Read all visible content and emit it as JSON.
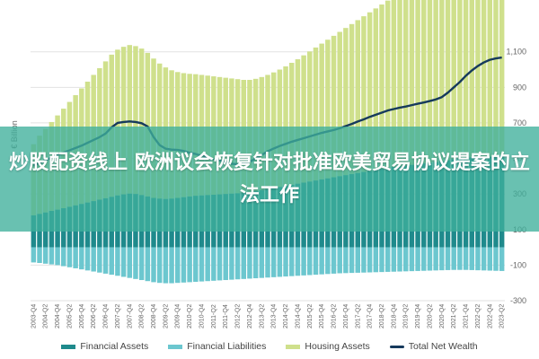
{
  "overlay": {
    "headline": "炒股配资线上 欧洲议会恢复针对批准欧美贸易协议提案的立法工作"
  },
  "chart_data": {
    "type": "bar+line",
    "ylabel": "€ Billion",
    "ylim": [
      -300,
      1250
    ],
    "yticks": [
      -300,
      -100,
      100,
      300,
      500,
      700,
      900,
      1100
    ],
    "ytick_labels": [
      "-300",
      "-100",
      "100",
      "300",
      "500",
      "700",
      "900",
      "1,100"
    ],
    "grid": true,
    "legend_position": "bottom",
    "x": [
      "2003-Q4",
      "2004-Q1",
      "2004-Q2",
      "2004-Q3",
      "2004-Q4",
      "2005-Q1",
      "2005-Q2",
      "2005-Q3",
      "2005-Q4",
      "2006-Q1",
      "2006-Q2",
      "2006-Q3",
      "2006-Q4",
      "2007-Q1",
      "2007-Q2",
      "2007-Q3",
      "2007-Q4",
      "2008-Q1",
      "2008-Q2",
      "2008-Q3",
      "2008-Q4",
      "2009-Q1",
      "2009-Q2",
      "2009-Q3",
      "2009-Q4",
      "2010-Q1",
      "2010-Q2",
      "2010-Q3",
      "2010-Q4",
      "2011-Q1",
      "2011-Q2",
      "2011-Q3",
      "2011-Q4",
      "2012-Q1",
      "2012-Q2",
      "2012-Q3",
      "2012-Q4",
      "2013-Q1",
      "2013-Q2",
      "2013-Q3",
      "2013-Q4",
      "2014-Q1",
      "2014-Q2",
      "2014-Q3",
      "2014-Q4",
      "2015-Q1",
      "2015-Q2",
      "2015-Q3",
      "2015-Q4",
      "2016-Q1",
      "2016-Q2",
      "2016-Q3",
      "2016-Q4",
      "2017-Q1",
      "2017-Q2",
      "2017-Q3",
      "2017-Q4",
      "2018-Q1",
      "2018-Q2",
      "2018-Q3",
      "2018-Q4",
      "2019-Q1",
      "2019-Q2",
      "2019-Q3",
      "2019-Q4",
      "2020-Q1",
      "2020-Q2",
      "2020-Q3",
      "2020-Q4",
      "2021-Q1",
      "2021-Q2",
      "2021-Q3",
      "2021-Q4",
      "2022-Q1",
      "2022-Q2",
      "2022-Q3",
      "2022-Q4",
      "2023-Q1",
      "2023-Q2"
    ],
    "x_tick_labels": [
      "2003-Q4",
      "2004-Q2",
      "2004-Q4",
      "2005-Q2",
      "2005-Q4",
      "2006-Q2",
      "2006-Q4",
      "2007-Q2",
      "2007-Q4",
      "2008-Q2",
      "2008-Q4",
      "2009-Q2",
      "2009-Q4",
      "2010-Q2",
      "2010-Q4",
      "2011-Q2",
      "2011-Q4",
      "2012-Q2",
      "2012-Q4",
      "2013-Q2",
      "2013-Q4",
      "2014-Q2",
      "2014-Q4",
      "2015-Q2",
      "2015-Q4",
      "2016-Q2",
      "2016-Q4",
      "2017-Q2",
      "2017-Q4",
      "2018-Q2",
      "2018-Q4",
      "2019-Q2",
      "2019-Q4",
      "2020-Q2",
      "2020-Q4",
      "2021-Q2",
      "2021-Q4",
      "2022-Q2",
      "2022-Q4",
      "2023-Q2"
    ],
    "series": [
      {
        "name": "Financial Assets",
        "kind": "bar",
        "color": "#1f8a8c",
        "values": [
          180,
          188,
          196,
          205,
          212,
          220,
          228,
          236,
          244,
          252,
          260,
          268,
          276,
          284,
          292,
          298,
          302,
          300,
          294,
          286,
          278,
          274,
          272,
          274,
          278,
          282,
          286,
          290,
          292,
          294,
          296,
          298,
          300,
          302,
          304,
          306,
          310,
          316,
          322,
          328,
          334,
          340,
          346,
          352,
          358,
          364,
          370,
          376,
          382,
          388,
          394,
          400,
          406,
          412,
          418,
          424,
          430,
          436,
          442,
          448,
          452,
          456,
          460,
          464,
          468,
          472,
          476,
          480,
          484,
          490,
          496,
          500,
          504,
          506,
          508,
          508,
          510,
          514,
          518
        ]
      },
      {
        "name": "Financial Liabilities",
        "kind": "bar",
        "color": "#6cc7cf",
        "values": [
          -85,
          -88,
          -92,
          -96,
          -100,
          -106,
          -112,
          -118,
          -124,
          -130,
          -136,
          -142,
          -148,
          -154,
          -160,
          -166,
          -172,
          -178,
          -184,
          -190,
          -196,
          -200,
          -202,
          -202,
          -200,
          -198,
          -196,
          -194,
          -192,
          -190,
          -188,
          -186,
          -184,
          -182,
          -180,
          -178,
          -176,
          -174,
          -172,
          -170,
          -168,
          -166,
          -164,
          -162,
          -160,
          -158,
          -156,
          -154,
          -152,
          -150,
          -148,
          -146,
          -145,
          -144,
          -143,
          -142,
          -141,
          -140,
          -139,
          -138,
          -137,
          -136,
          -135,
          -134,
          -133,
          -132,
          -131,
          -130,
          -129,
          -128,
          -127,
          -127,
          -127,
          -128,
          -129,
          -130,
          -131,
          -132,
          -133
        ]
      },
      {
        "name": "Housing Assets",
        "kind": "bar",
        "color": "#cfe08c",
        "values": [
          400,
          440,
          470,
          500,
          530,
          560,
          590,
          620,
          650,
          680,
          710,
          740,
          770,
          800,
          820,
          830,
          836,
          832,
          824,
          808,
          784,
          760,
          740,
          722,
          708,
          698,
          690,
          684,
          678,
          672,
          666,
          660,
          654,
          648,
          642,
          636,
          632,
          632,
          636,
          642,
          650,
          660,
          672,
          686,
          700,
          716,
          732,
          748,
          764,
          780,
          796,
          812,
          828,
          844,
          860,
          876,
          892,
          908,
          924,
          940,
          952,
          960,
          968,
          978,
          990,
          1000,
          1008,
          1016,
          1040,
          1080,
          1120,
          1150,
          1170,
          1180,
          1190,
          1196,
          1200,
          1202,
          1202
        ]
      },
      {
        "name": "Total Net Wealth",
        "kind": "line",
        "color": "#163a5c",
        "values": [
          460,
          475,
          490,
          505,
          520,
          533,
          546,
          559,
          572,
          588,
          604,
          620,
          640,
          675,
          700,
          705,
          708,
          705,
          698,
          680,
          620,
          575,
          555,
          550,
          548,
          542,
          532,
          525,
          515,
          505,
          495,
          488,
          478,
          470,
          468,
          472,
          482,
          498,
          520,
          540,
          556,
          570,
          582,
          594,
          604,
          614,
          624,
          634,
          644,
          652,
          660,
          670,
          682,
          694,
          708,
          720,
          734,
          746,
          758,
          770,
          778,
          786,
          792,
          800,
          808,
          815,
          823,
          832,
          845,
          870,
          900,
          930,
          965,
          995,
          1020,
          1040,
          1055,
          1063,
          1068
        ]
      }
    ]
  }
}
